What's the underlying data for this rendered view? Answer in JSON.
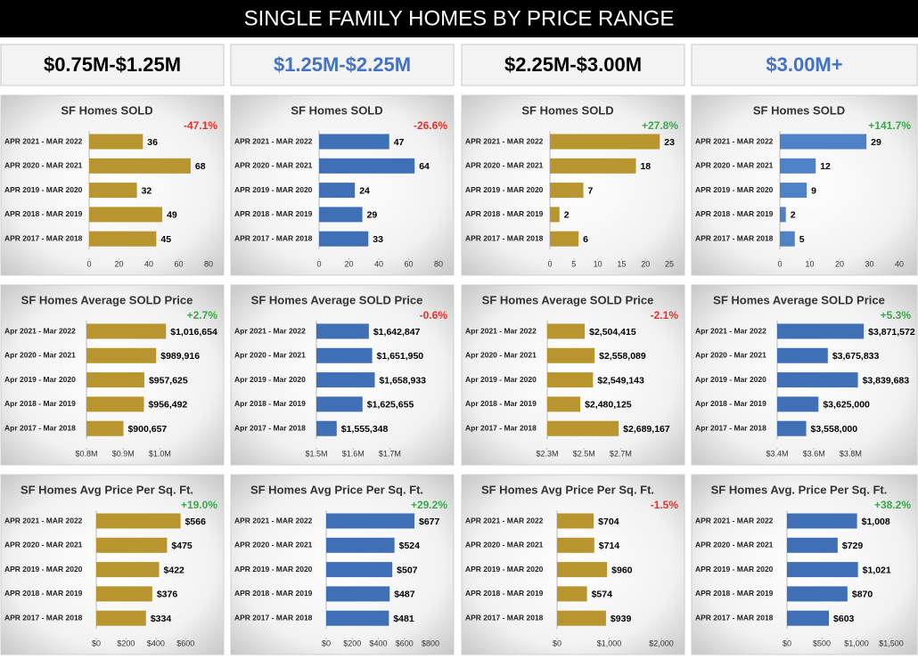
{
  "title": "SINGLE FAMILY HOMES BY PRICE RANGE",
  "columns": [
    {
      "label": "$0.75M-$1.25M",
      "color": "#000000"
    },
    {
      "label": "$1.25M-$2.25M",
      "color": "#4472c4"
    },
    {
      "label": "$2.25M-$3.00M",
      "color": "#000000"
    },
    {
      "label": "$3.00M+",
      "color": "#4472c4"
    }
  ],
  "chart_data": [
    {
      "type": "bar",
      "title": "SF Homes SOLD",
      "annotation": "-47.1%",
      "annotation_color": "#e8322e",
      "color": "#b8952f",
      "categories": [
        "APR 2021 - MAR 2022",
        "APR 2020 - MAR 2021",
        "APR 2019 - MAR 2020",
        "APR 2018 - MAR 2019",
        "APR 2017 - MAR 2018"
      ],
      "values": [
        36,
        68,
        32,
        49,
        45
      ],
      "xlim": [
        0,
        80
      ],
      "xticks": [
        0,
        20,
        40,
        60,
        80
      ]
    },
    {
      "type": "bar",
      "title": "SF Homes SOLD",
      "annotation": "-26.6%",
      "annotation_color": "#e8322e",
      "color": "#3f6fb5",
      "categories": [
        "APR 2021 - MAR 2022",
        "APR 2020 - MAR 2021",
        "APR 2019 - MAR 2020",
        "APR 2018 - MAR 2019",
        "APR 2017 - MAR 2018"
      ],
      "values": [
        47,
        64,
        24,
        29,
        33
      ],
      "xlim": [
        0,
        80
      ],
      "xticks": [
        0,
        20,
        40,
        60,
        80
      ]
    },
    {
      "type": "bar",
      "title": "SF Homes SOLD",
      "annotation": "+27.8%",
      "annotation_color": "#3aa84a",
      "color": "#b8952f",
      "categories": [
        "APR 2021 - MAR 2022",
        "APR 2020 - MAR 2021",
        "APR 2019 - MAR 2020",
        "APR 2018 - MAR 2019",
        "APR 2017 - MAR 2018"
      ],
      "values": [
        23,
        18,
        7,
        2,
        6
      ],
      "xlim": [
        0,
        25
      ],
      "xticks": [
        0,
        5,
        10,
        15,
        20,
        25
      ]
    },
    {
      "type": "bar",
      "title": "SF Homes SOLD",
      "annotation": "+141.7%",
      "annotation_color": "#3aa84a",
      "color": "#4f81c7",
      "categories": [
        "APR 2021 - MAR 2022",
        "APR 2020 - MAR 2021",
        "APR 2019 - MAR 2020",
        "APR 2018 - MAR 2019",
        "APR 2017 - MAR 2018"
      ],
      "values": [
        29,
        12,
        9,
        2,
        5
      ],
      "xlim": [
        0,
        40
      ],
      "xticks": [
        0,
        10,
        20,
        30,
        40
      ]
    },
    {
      "type": "bar",
      "title": "SF Homes Average SOLD Price",
      "annotation": "+2.7%",
      "annotation_color": "#3aa84a",
      "color": "#b8952f",
      "categories": [
        "Apr 2021 - Mar 2022",
        "Apr 2020 - Mar 2021",
        "Apr 2019 - Mar 2020",
        "Apr 2018 - Mar 2019",
        "Apr 2017 - Mar 2018"
      ],
      "values": [
        1016654,
        989916,
        957625,
        956492,
        900657
      ],
      "value_labels": [
        "$1,016,654",
        "$989,916",
        "$957,625",
        "$956,492",
        "$900,657"
      ],
      "xlim": [
        800000,
        1050000
      ],
      "xticks": [
        {
          "value": 800000,
          "label": "$0.8M"
        },
        {
          "value": 900000,
          "label": "$0.9M"
        },
        {
          "value": 1000000,
          "label": "$1.0M"
        }
      ]
    },
    {
      "type": "bar",
      "title": "SF Homes Average SOLD Price",
      "annotation": "-0.6%",
      "annotation_color": "#e8322e",
      "color": "#3f6fb5",
      "categories": [
        "Apr 2021 - Mar 2022",
        "Apr 2020 - Mar 2021",
        "Apr 2019 - Mar 2020",
        "Apr 2018 - Mar 2019",
        "Apr 2017 - Mar 2018"
      ],
      "values": [
        1642847,
        1651950,
        1658933,
        1625655,
        1555348
      ],
      "value_labels": [
        "$1,642,847",
        "$1,651,950",
        "$1,658,933",
        "$1,625,655",
        "$1,555,348"
      ],
      "xlim": [
        1500000,
        1750000
      ],
      "xticks": [
        {
          "value": 1500000,
          "label": "$1.5M"
        },
        {
          "value": 1600000,
          "label": "$1.6M"
        },
        {
          "value": 1700000,
          "label": "$1.7M"
        }
      ]
    },
    {
      "type": "bar",
      "title": "SF Homes Average SOLD Price",
      "annotation": "-2.1%",
      "annotation_color": "#e8322e",
      "color": "#b8952f",
      "categories": [
        "Apr 2021 - Mar 2022",
        "Apr 2020 - Mar 2021",
        "Apr 2019 - Mar 2020",
        "Apr 2018 - Mar 2019",
        "Apr 2017 - Mar 2018"
      ],
      "values": [
        2504415,
        2558089,
        2549143,
        2480125,
        2689167
      ],
      "value_labels": [
        "$2,504,415",
        "$2,558,089",
        "$2,549,143",
        "$2,480,125",
        "$2,689,167"
      ],
      "xlim": [
        2300000,
        2800000
      ],
      "xticks": [
        {
          "value": 2300000,
          "label": "$2.3M"
        },
        {
          "value": 2500000,
          "label": "$2.5M"
        },
        {
          "value": 2700000,
          "label": "$2.7M"
        }
      ]
    },
    {
      "type": "bar",
      "title": "SF Homes Average SOLD Price",
      "annotation": "+5.3%",
      "annotation_color": "#3aa84a",
      "color": "#3f6fb5",
      "categories": [
        "Apr 2021 - Mar 2022",
        "Apr 2020 - Mar 2021",
        "Apr 2019 - Mar 2020",
        "Apr 2018 - Mar 2019",
        "Apr 2017 - Mar 2018"
      ],
      "values": [
        3871572,
        3675833,
        3839683,
        3625000,
        3558000
      ],
      "value_labels": [
        "$3,871,572",
        "$3,675,833",
        "$3,839,683",
        "$3,625,000",
        "$3,558,000"
      ],
      "xlim": [
        3400000,
        3900000
      ],
      "xticks": [
        {
          "value": 3400000,
          "label": "$3.4M"
        },
        {
          "value": 3600000,
          "label": "$3.6M"
        },
        {
          "value": 3800000,
          "label": "$3.8M"
        }
      ]
    },
    {
      "type": "bar",
      "title": "SF Homes Avg Price Per Sq. Ft.",
      "annotation": "+19.0%",
      "annotation_color": "#3aa84a",
      "color": "#b8952f",
      "categories": [
        "APR 2021 - MAR 2022",
        "APR 2020 - MAR 2021",
        "APR 2019 - MAR 2020",
        "APR 2018 - MAR 2019",
        "APR 2017 - MAR 2018"
      ],
      "values": [
        566,
        475,
        422,
        376,
        334
      ],
      "value_labels": [
        "$566",
        "$475",
        "$422",
        "$376",
        "$334"
      ],
      "xlim": [
        0,
        700
      ],
      "xticks": [
        {
          "value": 0,
          "label": "$0"
        },
        {
          "value": 200,
          "label": "$200"
        },
        {
          "value": 400,
          "label": "$400"
        },
        {
          "value": 600,
          "label": "$600"
        }
      ]
    },
    {
      "type": "bar",
      "title": "SF Homes Avg Price Per Sq. Ft.",
      "annotation": "+29.2%",
      "annotation_color": "#3aa84a",
      "color": "#3f6fb5",
      "categories": [
        "APR 2021 - MAR 2022",
        "APR 2020 - MAR 2021",
        "APR 2019 - MAR 2020",
        "APR 2018 - MAR 2019",
        "APR 2017 - MAR 2018"
      ],
      "values": [
        677,
        524,
        507,
        487,
        481
      ],
      "value_labels": [
        "$677",
        "$524",
        "$507",
        "$487",
        "$481"
      ],
      "xlim": [
        0,
        800
      ],
      "xticks": [
        {
          "value": 0,
          "label": "$0"
        },
        {
          "value": 200,
          "label": "$200"
        },
        {
          "value": 400,
          "label": "$400"
        },
        {
          "value": 600,
          "label": "$600"
        },
        {
          "value": 800,
          "label": "$800"
        }
      ]
    },
    {
      "type": "bar",
      "title": "SF Homes Avg Price Per Sq. Ft.",
      "annotation": "-1.5%",
      "annotation_color": "#e8322e",
      "color": "#b8952f",
      "categories": [
        "APR 2021 - MAR 2022",
        "APR 2020 - MAR 2021",
        "APR 2019 - MAR 2020",
        "APR 2018 - MAR 2019",
        "APR 2017 - MAR 2018"
      ],
      "values": [
        704,
        714,
        960,
        574,
        939
      ],
      "value_labels": [
        "$704",
        "$714",
        "$960",
        "$574",
        "$939"
      ],
      "xlim": [
        0,
        2000
      ],
      "xticks": [
        {
          "value": 0,
          "label": "$0"
        },
        {
          "value": 1000,
          "label": "$1,000"
        },
        {
          "value": 2000,
          "label": "$2,000"
        }
      ]
    },
    {
      "type": "bar",
      "title": "SF Homes Avg. Price Per Sq. Ft.",
      "annotation": "+38.2%",
      "annotation_color": "#3aa84a",
      "color": "#3f6fb5",
      "categories": [
        "APR 2021 - MAR 2022",
        "APR 2020 - MAR 2021",
        "APR 2019 - MAR 2020",
        "APR 2018 - MAR 2019",
        "APR 2017 - MAR 2018"
      ],
      "values": [
        1008,
        729,
        1021,
        870,
        603
      ],
      "value_labels": [
        "$1,008",
        "$729",
        "$1,021",
        "$870",
        "$603"
      ],
      "xlim": [
        0,
        1500
      ],
      "xticks": [
        {
          "value": 0,
          "label": "$0"
        },
        {
          "value": 500,
          "label": "$500"
        },
        {
          "value": 1000,
          "label": "$1,000"
        },
        {
          "value": 1500,
          "label": "$1,500"
        }
      ]
    }
  ]
}
